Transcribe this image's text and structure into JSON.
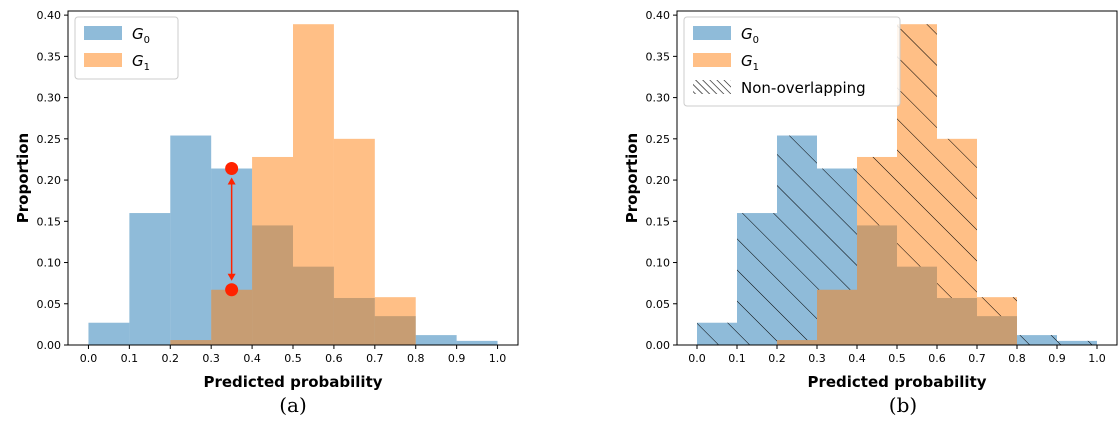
{
  "chart_data": [
    {
      "type": "bar",
      "caption": "(a)",
      "xlabel": "Predicted probability",
      "ylabel": "Proportion",
      "xlim": [
        -0.05,
        1.05
      ],
      "ylim": [
        0,
        0.405
      ],
      "xticks": [
        "0.0",
        "0.1",
        "0.2",
        "0.3",
        "0.4",
        "0.5",
        "0.6",
        "0.7",
        "0.8",
        "0.9",
        "1.0"
      ],
      "yticks": [
        "0.00",
        "0.05",
        "0.10",
        "0.15",
        "0.20",
        "0.25",
        "0.30",
        "0.35",
        "0.40"
      ],
      "bin_edges": [
        0.0,
        0.1,
        0.2,
        0.3,
        0.4,
        0.5,
        0.6,
        0.7,
        0.8,
        0.9,
        1.0
      ],
      "legend_position": "top-left",
      "series": [
        {
          "name": "G",
          "subscript": "0",
          "color": "#1f77b4",
          "values": [
            0.027,
            0.16,
            0.254,
            0.214,
            0.145,
            0.095,
            0.057,
            0.035,
            0.012,
            0.005
          ]
        },
        {
          "name": "G",
          "subscript": "1",
          "color": "#ff7f0e",
          "values": [
            0.0,
            0.0,
            0.006,
            0.067,
            0.228,
            0.389,
            0.25,
            0.058,
            0.0,
            0.0
          ]
        }
      ],
      "annotation": {
        "type": "double-arrow",
        "color": "#ff2200",
        "x": 0.35,
        "y_top": 0.214,
        "y_bottom": 0.067
      }
    },
    {
      "type": "bar",
      "caption": "(b)",
      "xlabel": "Predicted probability",
      "ylabel": "Proportion",
      "xlim": [
        -0.05,
        1.05
      ],
      "ylim": [
        0,
        0.405
      ],
      "xticks": [
        "0.0",
        "0.1",
        "0.2",
        "0.3",
        "0.4",
        "0.5",
        "0.6",
        "0.7",
        "0.8",
        "0.9",
        "1.0"
      ],
      "yticks": [
        "0.00",
        "0.05",
        "0.10",
        "0.15",
        "0.20",
        "0.25",
        "0.30",
        "0.35",
        "0.40"
      ],
      "bin_edges": [
        0.0,
        0.1,
        0.2,
        0.3,
        0.4,
        0.5,
        0.6,
        0.7,
        0.8,
        0.9,
        1.0
      ],
      "legend_position": "top-left",
      "hatch_label": "Non-overlapping",
      "series": [
        {
          "name": "G",
          "subscript": "0",
          "color": "#1f77b4",
          "values": [
            0.027,
            0.16,
            0.254,
            0.214,
            0.145,
            0.095,
            0.057,
            0.035,
            0.012,
            0.005
          ]
        },
        {
          "name": "G",
          "subscript": "1",
          "color": "#ff7f0e",
          "values": [
            0.0,
            0.0,
            0.006,
            0.067,
            0.228,
            0.389,
            0.25,
            0.058,
            0.0,
            0.0
          ]
        }
      ]
    }
  ]
}
